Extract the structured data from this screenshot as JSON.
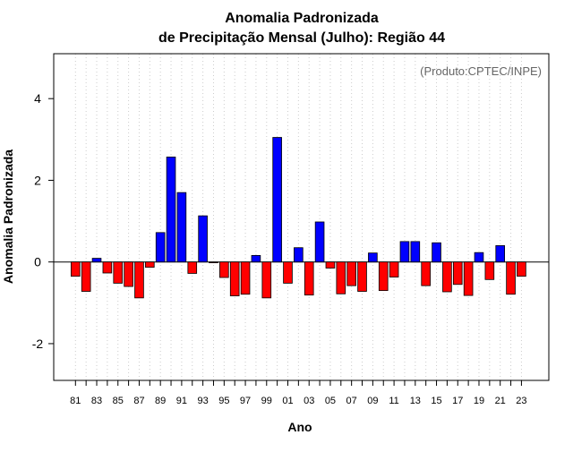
{
  "chart_data": {
    "type": "bar",
    "title_line1": "Anomalia Padronizada",
    "title_line2": "de Precipitação Mensal (Julho): Região 44",
    "xlabel": "Ano",
    "ylabel": "Anomalia Padronizada",
    "source_note": "(Produto:CPTEC/INPE)",
    "ylim": [
      -2.9,
      5.1
    ],
    "yticks": [
      -2,
      0,
      2,
      4
    ],
    "yticks_labels": [
      "-2",
      "0",
      "2",
      "4"
    ],
    "grid": "vertical dotted",
    "categories": [
      "81",
      "82",
      "83",
      "84",
      "85",
      "86",
      "87",
      "88",
      "89",
      "90",
      "91",
      "92",
      "93",
      "94",
      "95",
      "96",
      "97",
      "98",
      "99",
      "00",
      "01",
      "02",
      "03",
      "04",
      "05",
      "06",
      "07",
      "08",
      "09",
      "10",
      "11",
      "12",
      "13",
      "14",
      "15",
      "16",
      "17",
      "18",
      "19",
      "20",
      "21",
      "22",
      "23"
    ],
    "xtick_labels": [
      "81",
      "83",
      "85",
      "87",
      "89",
      "91",
      "93",
      "95",
      "97",
      "99",
      "01",
      "03",
      "05",
      "07",
      "09",
      "11",
      "13",
      "15",
      "17",
      "19",
      "21",
      "23"
    ],
    "values": [
      -0.35,
      -0.72,
      0.09,
      -0.27,
      -0.52,
      -0.6,
      -0.88,
      -0.13,
      0.72,
      2.57,
      1.7,
      -0.28,
      1.13,
      -0.02,
      -0.38,
      -0.83,
      -0.79,
      0.16,
      -0.88,
      3.05,
      -0.52,
      0.35,
      -0.81,
      0.98,
      -0.15,
      -0.78,
      -0.58,
      -0.72,
      0.22,
      -0.7,
      -0.37,
      0.5,
      0.5,
      -0.58,
      0.47,
      -0.73,
      -0.55,
      -0.82,
      0.23,
      -0.43,
      0.4,
      -0.79,
      -0.35
    ],
    "colors": {
      "positive": "#0000ff",
      "negative": "#ff0000",
      "outline": "#000000",
      "grid": "#cccccc"
    }
  }
}
